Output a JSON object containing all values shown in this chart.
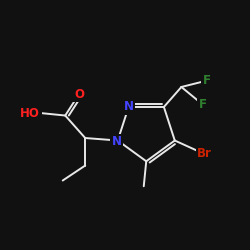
{
  "bg_color": "#111111",
  "bond_color": "#e8e8e8",
  "atom_colors": {
    "O": "#ff2020",
    "N": "#4444ff",
    "F": "#308030",
    "Br": "#cc2200",
    "C": "#e8e8e8"
  },
  "figsize": [
    2.5,
    2.5
  ],
  "dpi": 100,
  "lw": 1.4,
  "fontsize": 8.5
}
